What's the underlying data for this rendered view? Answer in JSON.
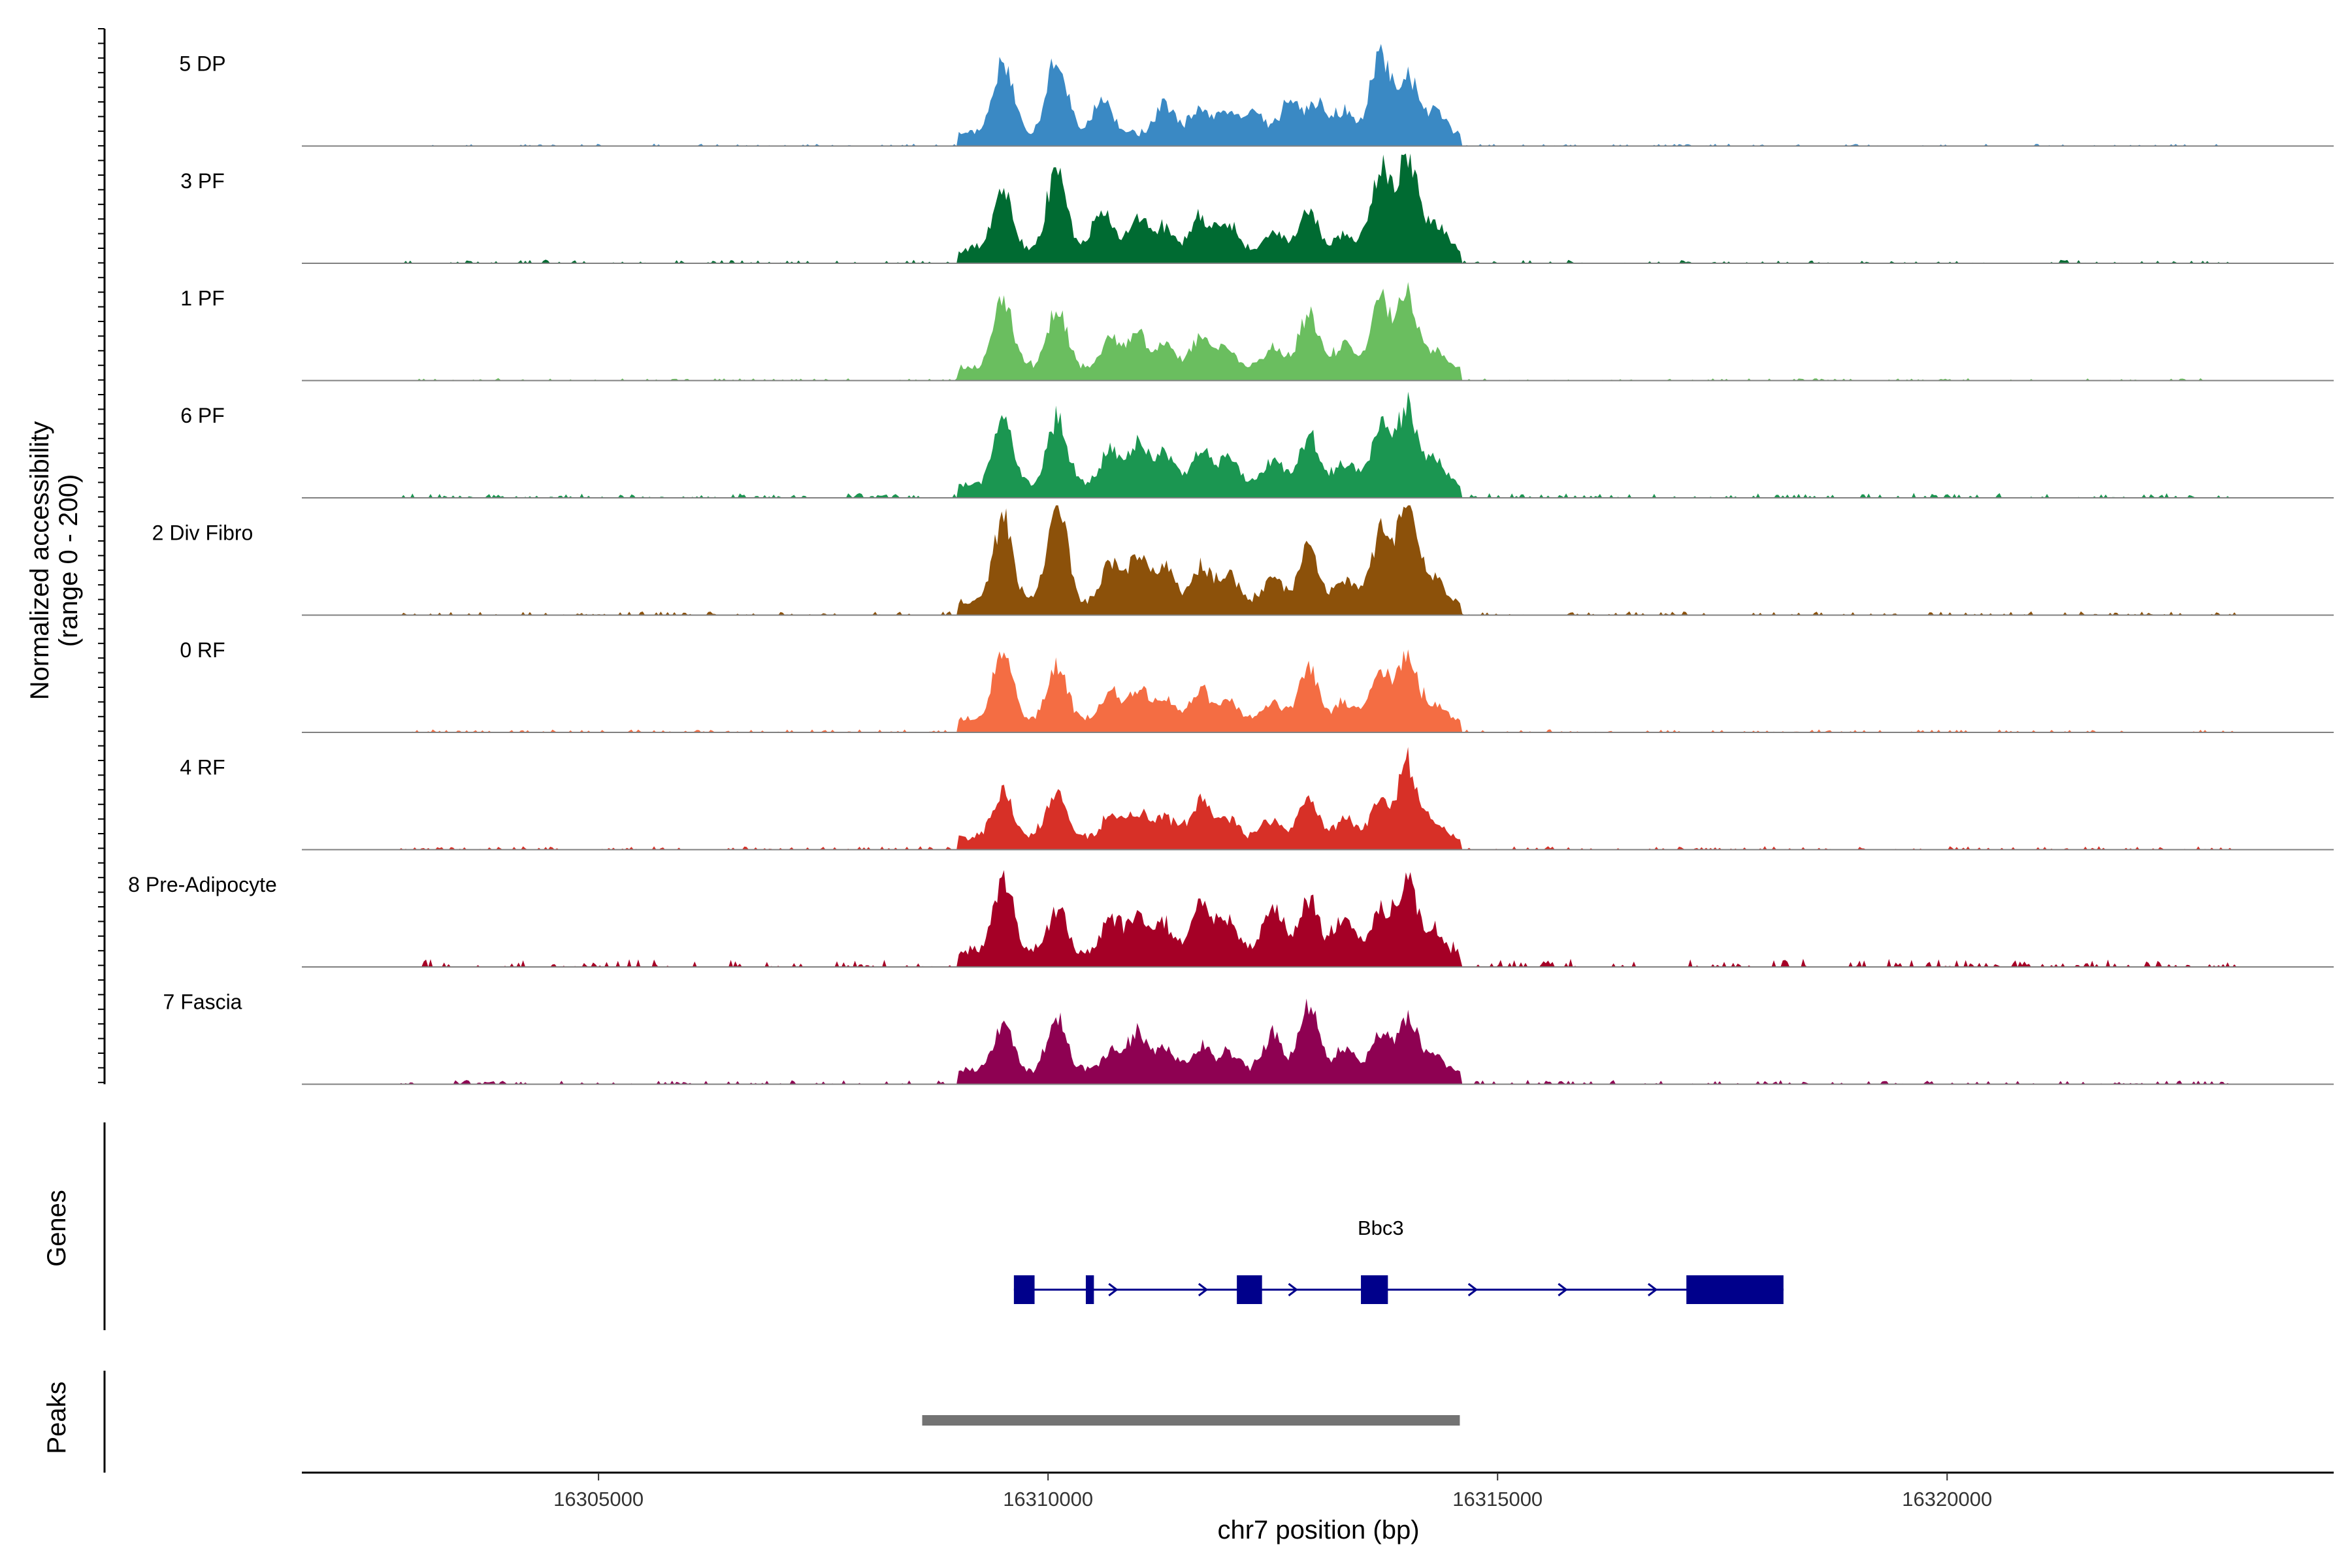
{
  "chart_data": {
    "type": "area",
    "ylabel": "Normalized accessibility",
    "ylabel_range": "(range 0 - 200)",
    "ylim": [
      0,
      200
    ],
    "xlabel": "chr7 position (bp)",
    "xlim": [
      16301700,
      16324300
    ],
    "x_ticks": [
      16305000,
      16310000,
      16315000,
      16320000
    ],
    "x_tick_labels": [
      "16305000",
      "16310000",
      "16315000",
      "16320000"
    ],
    "tracks": [
      {
        "name": "5 DP",
        "color": "#3A89C4",
        "peaks": [
          [
            16309500,
            130
          ],
          [
            16310100,
            145
          ],
          [
            16310600,
            60
          ],
          [
            16311300,
            50
          ],
          [
            16311700,
            45
          ],
          [
            16312000,
            40
          ],
          [
            16312300,
            42
          ],
          [
            16312700,
            60
          ],
          [
            16313000,
            55
          ],
          [
            16313300,
            40
          ],
          [
            16313700,
            145
          ],
          [
            16314000,
            110
          ],
          [
            16314300,
            40
          ]
        ],
        "noise": 4
      },
      {
        "name": "3 PF",
        "color": "#006B32",
        "peaks": [
          [
            16309500,
            110
          ],
          [
            16310100,
            150
          ],
          [
            16310600,
            70
          ],
          [
            16311000,
            60
          ],
          [
            16311300,
            45
          ],
          [
            16311700,
            60
          ],
          [
            16312000,
            50
          ],
          [
            16312500,
            35
          ],
          [
            16312900,
            70
          ],
          [
            16313300,
            30
          ],
          [
            16313700,
            150
          ],
          [
            16314000,
            170
          ],
          [
            16314300,
            50
          ]
        ],
        "noise": 6
      },
      {
        "name": "1 PF",
        "color": "#6ABE5F",
        "peaks": [
          [
            16309500,
            130
          ],
          [
            16310100,
            110
          ],
          [
            16310700,
            55
          ],
          [
            16311000,
            60
          ],
          [
            16311300,
            45
          ],
          [
            16311700,
            55
          ],
          [
            16312000,
            35
          ],
          [
            16312500,
            35
          ],
          [
            16312900,
            100
          ],
          [
            16313300,
            45
          ],
          [
            16313700,
            125
          ],
          [
            16314000,
            130
          ],
          [
            16314300,
            30
          ]
        ],
        "noise": 4
      },
      {
        "name": "6 PF",
        "color": "#1B9651",
        "peaks": [
          [
            16309500,
            125
          ],
          [
            16310100,
            125
          ],
          [
            16310700,
            65
          ],
          [
            16311000,
            70
          ],
          [
            16311300,
            60
          ],
          [
            16311700,
            60
          ],
          [
            16312000,
            50
          ],
          [
            16312500,
            45
          ],
          [
            16312900,
            90
          ],
          [
            16313300,
            40
          ],
          [
            16313700,
            110
          ],
          [
            16314000,
            140
          ],
          [
            16314300,
            45
          ]
        ],
        "noise": 8
      },
      {
        "name": "2 Div Fibro",
        "color": "#8C510A",
        "peaks": [
          [
            16309500,
            155
          ],
          [
            16310100,
            185
          ],
          [
            16310700,
            75
          ],
          [
            16311000,
            80
          ],
          [
            16311300,
            60
          ],
          [
            16311700,
            65
          ],
          [
            16312000,
            50
          ],
          [
            16312500,
            45
          ],
          [
            16312900,
            100
          ],
          [
            16313300,
            40
          ],
          [
            16313700,
            125
          ],
          [
            16314000,
            190
          ],
          [
            16314300,
            45
          ]
        ],
        "noise": 7
      },
      {
        "name": "0 RF",
        "color": "#F46D43",
        "peaks": [
          [
            16309500,
            130
          ],
          [
            16310100,
            100
          ],
          [
            16310700,
            50
          ],
          [
            16311000,
            55
          ],
          [
            16311300,
            40
          ],
          [
            16311700,
            50
          ],
          [
            16312000,
            35
          ],
          [
            16312500,
            35
          ],
          [
            16312900,
            95
          ],
          [
            16313300,
            30
          ],
          [
            16313700,
            90
          ],
          [
            16314000,
            120
          ],
          [
            16314300,
            30
          ]
        ],
        "noise": 5
      },
      {
        "name": "4 RF",
        "color": "#D73027",
        "peaks": [
          [
            16309500,
            85
          ],
          [
            16310100,
            80
          ],
          [
            16310700,
            40
          ],
          [
            16311000,
            45
          ],
          [
            16311300,
            40
          ],
          [
            16311700,
            65
          ],
          [
            16312000,
            30
          ],
          [
            16312500,
            30
          ],
          [
            16312900,
            70
          ],
          [
            16313300,
            30
          ],
          [
            16313700,
            60
          ],
          [
            16314000,
            135
          ],
          [
            16314300,
            30
          ]
        ],
        "noise": 6
      },
      {
        "name": "8 Pre-Adipocyte",
        "color": "#A50026",
        "peaks": [
          [
            16309500,
            140
          ],
          [
            16310100,
            80
          ],
          [
            16310700,
            65
          ],
          [
            16311000,
            70
          ],
          [
            16311300,
            50
          ],
          [
            16311700,
            100
          ],
          [
            16312000,
            55
          ],
          [
            16312500,
            90
          ],
          [
            16312900,
            100
          ],
          [
            16313300,
            70
          ],
          [
            16313700,
            80
          ],
          [
            16314000,
            135
          ],
          [
            16314300,
            40
          ]
        ],
        "noise": 14
      },
      {
        "name": "7 Fascia",
        "color": "#8E0152",
        "peaks": [
          [
            16309500,
            85
          ],
          [
            16310100,
            95
          ],
          [
            16310700,
            35
          ],
          [
            16311000,
            70
          ],
          [
            16311300,
            40
          ],
          [
            16311700,
            45
          ],
          [
            16312000,
            35
          ],
          [
            16312500,
            70
          ],
          [
            16312900,
            120
          ],
          [
            16313300,
            40
          ],
          [
            16313700,
            70
          ],
          [
            16314000,
            95
          ],
          [
            16314300,
            30
          ]
        ],
        "noise": 7
      }
    ],
    "genes_label": "Genes",
    "gene": {
      "name": "Bbc3",
      "color": "#00008B",
      "start": 16309620,
      "end": 16318180,
      "strand": "+",
      "exons": [
        [
          16309620,
          16309850
        ],
        [
          16310420,
          16310510
        ],
        [
          16312100,
          16312380
        ],
        [
          16313480,
          16313780
        ],
        [
          16317100,
          16318180
        ]
      ]
    },
    "peaks_label": "Peaks",
    "peak_regions": [
      [
        16308600,
        16314580
      ]
    ],
    "peak_color": "#737373"
  }
}
